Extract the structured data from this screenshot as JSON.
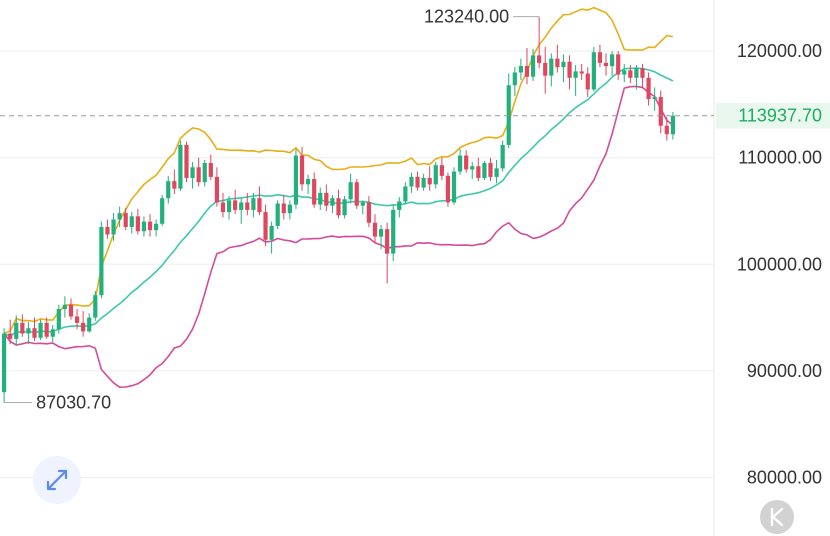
{
  "chart_data": {
    "type": "candlestick",
    "ylim": [
      74500,
      124800
    ],
    "y_ticks": [
      "120000.00",
      "110000.00",
      "100000.00",
      "90000.00",
      "80000.00"
    ],
    "y_tick_values": [
      120000,
      110000,
      100000,
      90000,
      80000
    ],
    "current_price": {
      "value": 113937.7,
      "label": "113937.70"
    },
    "annotations": [
      {
        "name": "period-high",
        "label": "123240.00",
        "value": 123240.0
      },
      {
        "name": "period-low",
        "label": "87030.70",
        "value": 87030.7
      }
    ],
    "colors": {
      "up": "#22b07d",
      "down": "#e0465e",
      "bb_upper": "#e8ae17",
      "bb_middle": "#3dc8ac",
      "bb_lower": "#d54a9c",
      "grid": "#eeeeee",
      "price_line": "#999999",
      "price_label_bg": "#eaf7ee",
      "price_label_text": "#1aaf5d"
    },
    "candles": [
      [
        88000,
        94000,
        87030.7,
        93500
      ],
      [
        93500,
        94800,
        92500,
        93000
      ],
      [
        93000,
        95200,
        92400,
        94500
      ],
      [
        94500,
        95300,
        93200,
        93500
      ],
      [
        93500,
        94600,
        92500,
        94000
      ],
      [
        94000,
        95000,
        92800,
        93100
      ],
      [
        93100,
        94800,
        92900,
        94500
      ],
      [
        94500,
        95000,
        93000,
        93200
      ],
      [
        93200,
        94300,
        92700,
        93900
      ],
      [
        93900,
        96200,
        93500,
        95800
      ],
      [
        95800,
        97000,
        95000,
        96200
      ],
      [
        96200,
        96800,
        94800,
        95100
      ],
      [
        95100,
        95800,
        93900,
        94500
      ],
      [
        94500,
        95600,
        93200,
        93700
      ],
      [
        93700,
        95400,
        93600,
        95000
      ],
      [
        95000,
        97500,
        94700,
        97100
      ],
      [
        97100,
        104000,
        96800,
        103500
      ],
      [
        103500,
        104200,
        102400,
        102800
      ],
      [
        102800,
        104800,
        102200,
        104200
      ],
      [
        104200,
        105400,
        103500,
        104800
      ],
      [
        104800,
        105300,
        103200,
        103500
      ],
      [
        103500,
        104900,
        102900,
        104500
      ],
      [
        104500,
        105200,
        102800,
        103100
      ],
      [
        103100,
        104500,
        102600,
        104000
      ],
      [
        104000,
        104700,
        102600,
        103200
      ],
      [
        103200,
        104200,
        102600,
        103800
      ],
      [
        103800,
        106500,
        103600,
        106200
      ],
      [
        106200,
        108300,
        105700,
        107800
      ],
      [
        107800,
        108900,
        106600,
        107100
      ],
      [
        107100,
        111600,
        106900,
        111200
      ],
      [
        111200,
        111500,
        107700,
        108100
      ],
      [
        108100,
        109600,
        107100,
        109100
      ],
      [
        109100,
        110000,
        107300,
        107700
      ],
      [
        107700,
        109800,
        107300,
        109500
      ],
      [
        109500,
        110300,
        107900,
        108200
      ],
      [
        108200,
        109100,
        105400,
        105800
      ],
      [
        105800,
        106700,
        104400,
        104900
      ],
      [
        104900,
        106400,
        104200,
        106000
      ],
      [
        106000,
        107000,
        104700,
        105100
      ],
      [
        105100,
        106200,
        103800,
        105800
      ],
      [
        105800,
        106700,
        104600,
        105100
      ],
      [
        105100,
        106700,
        104400,
        106200
      ],
      [
        106200,
        107300,
        104600,
        104900
      ],
      [
        104900,
        105600,
        101700,
        102300
      ],
      [
        102300,
        104000,
        101000,
        103600
      ],
      [
        103600,
        106000,
        103300,
        105700
      ],
      [
        105700,
        106500,
        104200,
        104800
      ],
      [
        104800,
        106000,
        104200,
        105600
      ],
      [
        105600,
        110800,
        105200,
        110200
      ],
      [
        110200,
        111000,
        106900,
        107500
      ],
      [
        107500,
        108400,
        106600,
        108000
      ],
      [
        108000,
        108600,
        105300,
        105600
      ],
      [
        105600,
        107200,
        105100,
        106700
      ],
      [
        106700,
        107500,
        105000,
        105500
      ],
      [
        105500,
        106500,
        104800,
        106200
      ],
      [
        106200,
        107000,
        104300,
        104600
      ],
      [
        104600,
        106400,
        104300,
        106100
      ],
      [
        106100,
        108500,
        105700,
        107700
      ],
      [
        107700,
        108000,
        105200,
        105500
      ],
      [
        105500,
        106000,
        104700,
        105800
      ],
      [
        105800,
        106400,
        103500,
        103900
      ],
      [
        103900,
        104700,
        102000,
        102600
      ],
      [
        102600,
        103700,
        101400,
        103300
      ],
      [
        103300,
        103900,
        98200,
        101000
      ],
      [
        101000,
        105600,
        100300,
        105100
      ],
      [
        105100,
        106300,
        104400,
        105900
      ],
      [
        105900,
        107700,
        105600,
        107300
      ],
      [
        107300,
        108600,
        106700,
        108200
      ],
      [
        108200,
        108700,
        106900,
        107200
      ],
      [
        107200,
        108500,
        106900,
        108100
      ],
      [
        108100,
        109200,
        106900,
        107500
      ],
      [
        107500,
        109600,
        107100,
        109300
      ],
      [
        109300,
        110000,
        107900,
        108300
      ],
      [
        108300,
        108600,
        105400,
        105800
      ],
      [
        105800,
        109100,
        105600,
        108700
      ],
      [
        108700,
        110800,
        108400,
        110200
      ],
      [
        110200,
        110700,
        108600,
        108900
      ],
      [
        108900,
        109600,
        108000,
        109200
      ],
      [
        109200,
        110000,
        107800,
        108100
      ],
      [
        108100,
        109700,
        107900,
        109500
      ],
      [
        109500,
        110000,
        107800,
        108200
      ],
      [
        108200,
        109800,
        107600,
        109000
      ],
      [
        109000,
        111600,
        108700,
        111200
      ],
      [
        111200,
        117900,
        110900,
        116800
      ],
      [
        116800,
        118500,
        115800,
        118000
      ],
      [
        118000,
        119300,
        117300,
        118600
      ],
      [
        118600,
        120300,
        116900,
        117600
      ],
      [
        117600,
        120200,
        117200,
        119600
      ],
      [
        119600,
        123240,
        118400,
        118900
      ],
      [
        118900,
        120400,
        116000,
        117700
      ],
      [
        117700,
        119800,
        116700,
        119300
      ],
      [
        119300,
        120600,
        118000,
        118500
      ],
      [
        118500,
        119700,
        117100,
        119000
      ],
      [
        119000,
        119600,
        116400,
        117500
      ],
      [
        117500,
        118700,
        115800,
        118100
      ],
      [
        118100,
        118800,
        117300,
        117900
      ],
      [
        117900,
        118500,
        115700,
        116400
      ],
      [
        116400,
        120400,
        116200,
        119900
      ],
      [
        119900,
        120600,
        118500,
        118900
      ],
      [
        118900,
        119800,
        117700,
        118600
      ],
      [
        118600,
        120000,
        117700,
        119700
      ],
      [
        119700,
        120000,
        117300,
        117800
      ],
      [
        117800,
        118800,
        117100,
        118200
      ],
      [
        118200,
        118700,
        117000,
        117500
      ],
      [
        117500,
        118700,
        116400,
        118400
      ],
      [
        118400,
        118800,
        116500,
        117500
      ],
      [
        117500,
        118000,
        114900,
        115500
      ],
      [
        115500,
        116600,
        114400,
        115700
      ],
      [
        115700,
        116300,
        112300,
        113000
      ],
      [
        113000,
        113800,
        111600,
        112200
      ],
      [
        112200,
        114300,
        111700,
        113937.7
      ]
    ]
  }
}
